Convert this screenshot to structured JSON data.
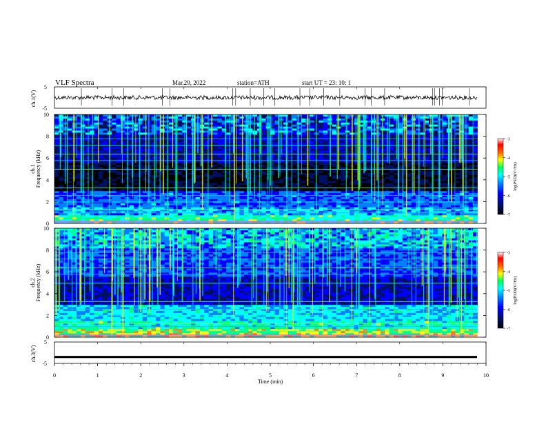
{
  "header": {
    "title": "VLF  Spectra",
    "date": "Mar.29, 2022",
    "station": "station=ATH",
    "start": "start  UT  =    23: 10: 1"
  },
  "chart_data": [
    {
      "id": "ch1-waveform",
      "type": "line",
      "ylabel": "ch.1(V)",
      "xlim": [
        0,
        10
      ],
      "ylim": [
        -5,
        5
      ],
      "yticks": [
        "5",
        "-5"
      ],
      "series": [
        {
          "description": "noisy waveform near 0 V",
          "level": 0,
          "trace_end_min": 9.8
        }
      ]
    },
    {
      "id": "ch1-spectrogram",
      "type": "heatmap",
      "ylabel_top": "ch.1",
      "ylabel": "Frequency  (kHz)",
      "xlim": [
        0,
        10
      ],
      "ylim": [
        0,
        10
      ],
      "yticks": [
        "0",
        "2",
        "4",
        "6",
        "8",
        "10"
      ],
      "colorbar": {
        "label": "log(PSD)(V²/Hz)",
        "range": [
          -7,
          -3
        ],
        "ticks": [
          "-3",
          "-4",
          "-5",
          "-6",
          "-7"
        ]
      },
      "data_end_min": 9.8
    },
    {
      "id": "ch2-spectrogram",
      "type": "heatmap",
      "ylabel_top": "ch.2",
      "ylabel": "Frequency  (kHz)",
      "xlim": [
        0,
        10
      ],
      "ylim": [
        0,
        10
      ],
      "yticks": [
        "0",
        "2",
        "4",
        "6",
        "8",
        "10"
      ],
      "colorbar": {
        "label": "log(PSD)(V²/Hz)",
        "range": [
          -7,
          -3
        ],
        "ticks": [
          "-3",
          "-4",
          "-5",
          "-6",
          "-7"
        ]
      },
      "data_end_min": 9.8
    },
    {
      "id": "ch3-waveform",
      "type": "line",
      "ylabel": "ch.3(V)",
      "xlim": [
        0,
        10
      ],
      "ylim": [
        -5,
        5
      ],
      "yticks": [
        "5",
        "-5"
      ],
      "series": [
        {
          "description": "flat thick trace",
          "level": -2,
          "trace_end_min": 9.8
        }
      ],
      "xlabel": "Time  (min)",
      "xticks": [
        "0",
        "1",
        "2",
        "3",
        "4",
        "5",
        "6",
        "7",
        "8",
        "9",
        "10"
      ]
    }
  ],
  "colors": {
    "colormap": [
      "#000000",
      "#001060",
      "#0000ff",
      "#0080ff",
      "#00ffff",
      "#00ff80",
      "#ffff00",
      "#ff8000",
      "#ff0000",
      "#ffffff"
    ]
  }
}
